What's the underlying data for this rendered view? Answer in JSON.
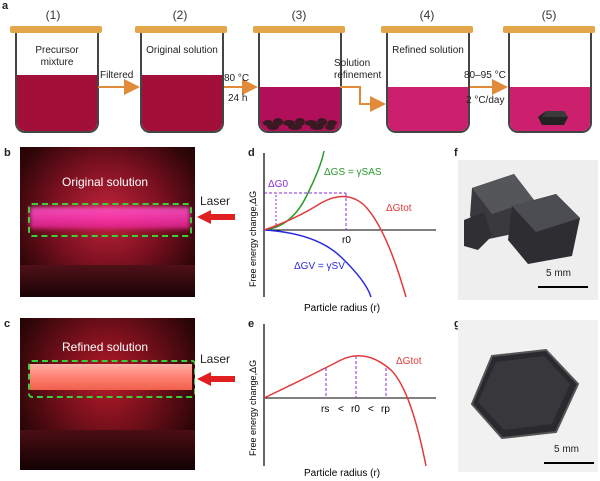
{
  "panel_labels": {
    "a": "a",
    "b": "b",
    "c": "c",
    "d": "d",
    "e": "e",
    "f": "f",
    "g": "g"
  },
  "steps": [
    {
      "num": "(1)",
      "label": "Precursor\nmixture",
      "liquid": "#a2103a"
    },
    {
      "num": "(2)",
      "label": "Original solution",
      "liquid": "#a2103a"
    },
    {
      "num": "(3)",
      "label": "",
      "liquid": "#b0105a"
    },
    {
      "num": "(4)",
      "label": "Refined solution",
      "liquid": "#cc1f6e"
    },
    {
      "num": "(5)",
      "label": "",
      "liquid": "#cc1f6e"
    }
  ],
  "arrows": {
    "a1": "Filtered",
    "a2_temp": "80 °C",
    "a2_time": "24 h",
    "a3": "Solution\nrefinement",
    "a4_temp": "80–95 °C",
    "a4_rate": "2 °C/day"
  },
  "photo_b": {
    "title": "Original solution",
    "laser": "Laser"
  },
  "photo_c": {
    "title": "Refined solution",
    "laser": "Laser"
  },
  "graph_d": {
    "ylabel": "Free energy change,ΔG",
    "xlabel": "Particle radius (r)",
    "g0": "ΔG0",
    "gs": "ΔGS = γSAS",
    "gtot": "ΔGtot",
    "r0": "r0",
    "gv": "ΔGV = γSV"
  },
  "graph_e": {
    "ylabel": "Free energy change,ΔG",
    "xlabel": "Particle radius (r)",
    "gtot": "ΔGtot",
    "rs": "rs",
    "lt1": "<",
    "r0": "r0",
    "lt2": "<",
    "rp": "rp"
  },
  "photo_f": {
    "scale": "5 mm"
  },
  "photo_g": {
    "scale": "5 mm"
  },
  "colors": {
    "green": "#2a9a2a",
    "red": "#e23a3a",
    "blue": "#2a2ae0",
    "purple": "#8a2be2",
    "arrow": "#e08a3a",
    "cap": "#e3a64a"
  }
}
